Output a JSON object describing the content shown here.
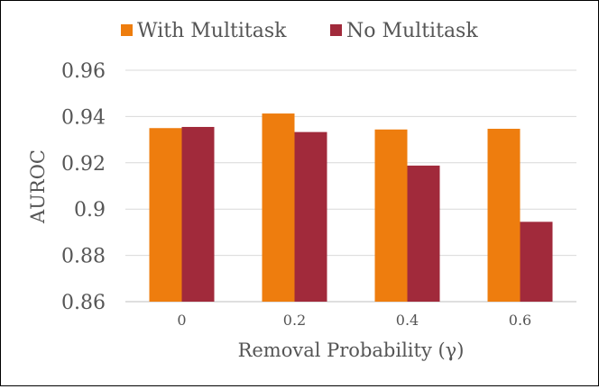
{
  "chart_data": {
    "type": "bar",
    "categories": [
      "0",
      "0.2",
      "0.4",
      "0.6"
    ],
    "series": [
      {
        "name": "With Multitask",
        "color": "#EE7D0E",
        "values": [
          0.935,
          0.9413,
          0.9344,
          0.9347
        ]
      },
      {
        "name": "No Multitask",
        "color": "#A12A3B",
        "values": [
          0.9355,
          0.9333,
          0.9188,
          0.8945
        ]
      }
    ],
    "xlabel": "Removal Probability (γ)",
    "ylabel": "AUROC",
    "ylim": [
      0.86,
      0.96
    ],
    "yticks": [
      "0.86",
      "0.88",
      "0.9",
      "0.92",
      "0.94",
      "0.96"
    ],
    "grid": true,
    "legend_position": "top"
  }
}
